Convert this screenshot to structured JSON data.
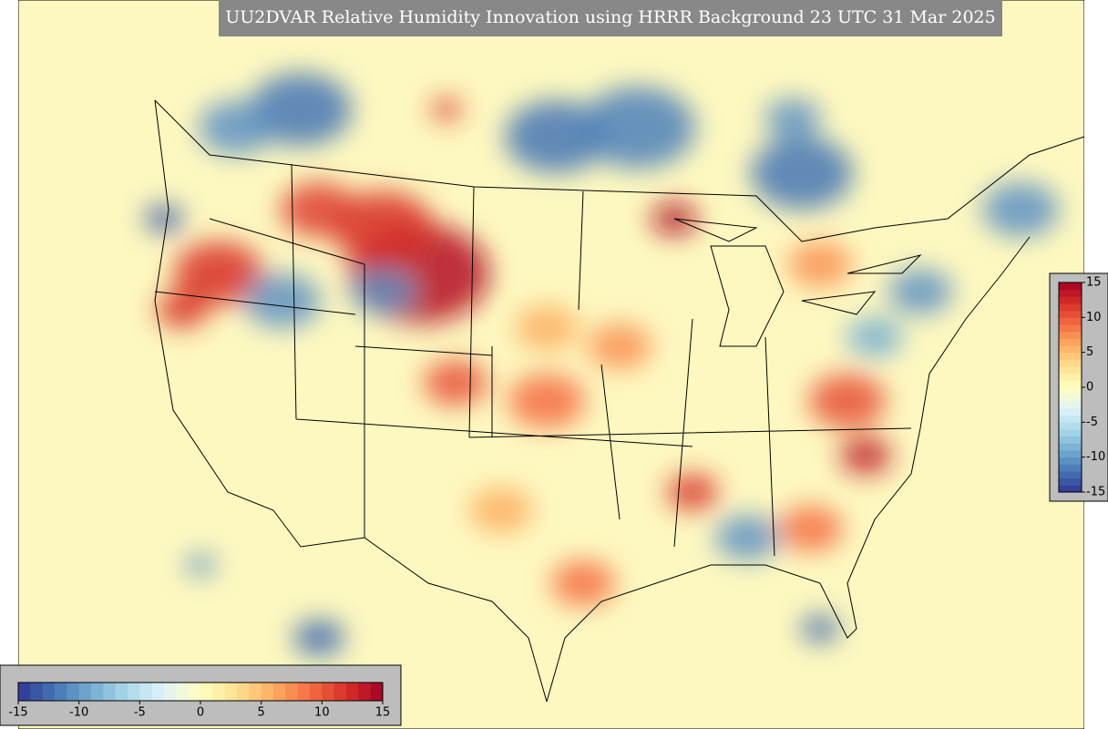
{
  "title": "UU2DVAR Relative Humidity Innovation using HRRR Background 23 UTC 31 Mar 2025",
  "colorbars": [
    {
      "orientation": "horizontal",
      "lim": [
        -15,
        15
      ],
      "ticks": [
        -15,
        -10,
        -5,
        0,
        5,
        10,
        15
      ]
    },
    {
      "orientation": "vertical",
      "lim": [
        -15,
        15
      ],
      "ticks": [
        15,
        10,
        5,
        0,
        -5,
        -10,
        -15
      ]
    }
  ]
}
